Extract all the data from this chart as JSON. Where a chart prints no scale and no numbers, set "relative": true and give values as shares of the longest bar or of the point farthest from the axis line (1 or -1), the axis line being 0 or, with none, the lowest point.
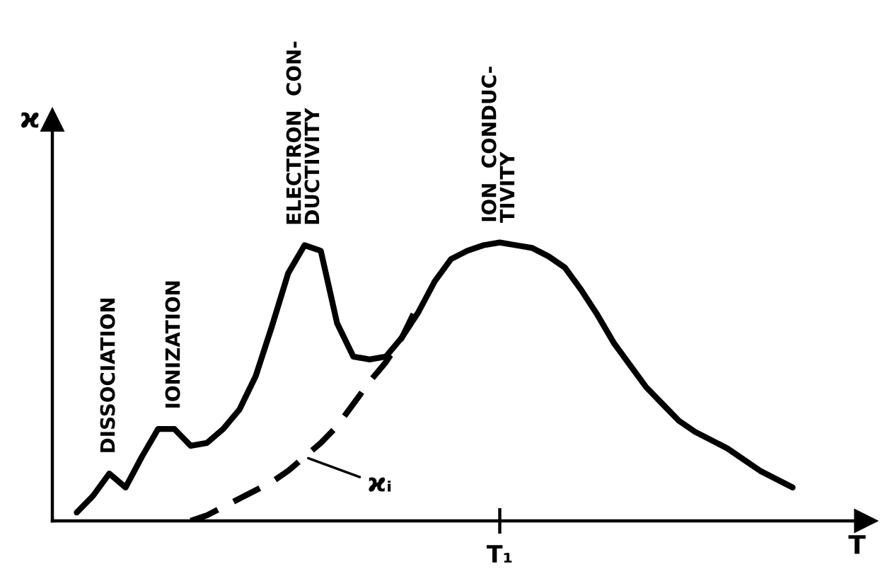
{
  "chart_data": {
    "type": "line",
    "relative": true,
    "xlabel": "T",
    "ylabel": "ϰ",
    "categories": [
      null,
      null,
      null,
      null,
      null,
      null,
      null,
      null,
      null,
      null,
      null,
      null,
      null,
      null,
      null,
      null,
      null,
      null,
      null,
      null,
      null,
      null,
      null,
      null,
      null,
      null,
      null,
      null,
      null,
      null,
      null,
      null,
      null,
      null,
      null,
      null,
      null,
      null,
      null,
      null,
      null,
      null,
      null,
      null,
      null
    ],
    "series": [
      {
        "color": "#000000",
        "line_style": "solid",
        "values": [
          0.03,
          0.09,
          0.17,
          0.12,
          0.23,
          0.33,
          0.33,
          0.27,
          0.28,
          0.33,
          0.4,
          0.52,
          0.7,
          0.89,
          0.99,
          0.97,
          0.71,
          0.59,
          0.58,
          0.59,
          0.66,
          0.75,
          0.86,
          0.94,
          0.97,
          0.99,
          1.0,
          0.99,
          0.98,
          0.95,
          0.91,
          0.83,
          0.74,
          0.64,
          0.56,
          0.48,
          0.42,
          0.36,
          0.32,
          0.29,
          0.26,
          0.22,
          0.18,
          0.15,
          0.12
        ]
      },
      {
        "name": "ϰᵢ",
        "color": "#000000",
        "line_style": "dashed",
        "values": [
          null,
          null,
          null,
          null,
          null,
          null,
          null,
          0.0,
          0.02,
          0.05,
          0.08,
          0.11,
          0.14,
          0.18,
          0.23,
          0.28,
          0.34,
          0.42,
          0.5,
          0.57,
          0.66,
          0.78,
          null,
          null,
          null,
          null,
          null,
          null,
          null,
          null,
          null,
          null,
          null,
          null,
          null,
          null,
          null,
          null,
          null,
          null,
          null,
          null,
          null,
          null,
          null
        ]
      }
    ],
    "annotations": [
      "DISSOCIATION",
      "IONIZATION",
      "ELECTRON  CON-\nDUCTIVITY",
      "ION  CONDUC-\nTIVITY",
      "T₁"
    ]
  }
}
